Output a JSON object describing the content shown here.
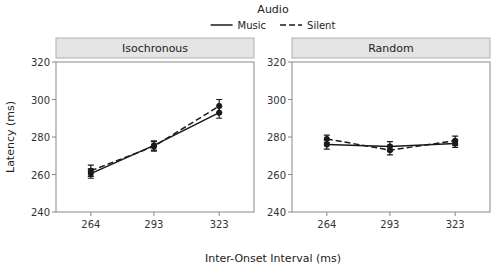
{
  "chart_data": [
    {
      "type": "line",
      "title": "Isochronous",
      "xlabel": "Inter-Onset Interval (ms)",
      "ylabel": "Latency (ms)",
      "legend_title": "Audio",
      "x": [
        264,
        293,
        323
      ],
      "series": [
        {
          "name": "Music",
          "color": "#1a1a1a",
          "marker": "circle",
          "line_style": "solid",
          "values": [
            260.5,
            275.5,
            293.0
          ],
          "errors": [
            2.5,
            2.5,
            3.0
          ]
        },
        {
          "name": "Silent",
          "color": "#1a1a1a",
          "marker": "circle",
          "line_style": "dashed",
          "values": [
            262.0,
            275.0,
            296.5
          ],
          "errors": [
            3.0,
            2.5,
            3.5
          ]
        }
      ],
      "xlim": [
        248,
        339
      ],
      "xticks": [
        264,
        293,
        323
      ],
      "ylim": [
        240,
        320
      ],
      "yticks": [
        240,
        260,
        280,
        300,
        320
      ],
      "grid": false
    },
    {
      "type": "line",
      "title": "Random",
      "x": [
        264,
        293,
        323
      ],
      "series": [
        {
          "color": "#1a1a1a",
          "marker": "circle",
          "line_style": "solid",
          "values": [
            276.0,
            275.0,
            276.5
          ],
          "errors": [
            2.5,
            2.5,
            2.0
          ]
        },
        {
          "color": "#1a1a1a",
          "marker": "circle",
          "line_style": "dashed",
          "values": [
            279.0,
            273.0,
            278.0
          ],
          "errors": [
            2.0,
            2.5,
            2.5
          ]
        }
      ],
      "xlim": [
        248,
        339
      ],
      "xticks": [
        264,
        293,
        323
      ],
      "ylim": [
        240,
        320
      ],
      "yticks": [
        240,
        260,
        280,
        300,
        320
      ],
      "grid": false
    }
  ]
}
